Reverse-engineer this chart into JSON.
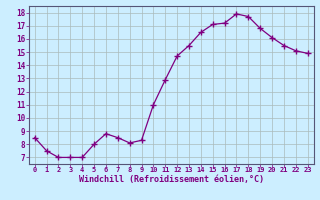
{
  "x": [
    0,
    1,
    2,
    3,
    4,
    5,
    6,
    7,
    8,
    9,
    10,
    11,
    12,
    13,
    14,
    15,
    16,
    17,
    18,
    19,
    20,
    21,
    22,
    23
  ],
  "y": [
    8.5,
    7.5,
    7.0,
    7.0,
    7.0,
    8.0,
    8.8,
    8.5,
    8.1,
    8.3,
    11.0,
    12.9,
    14.7,
    15.5,
    16.5,
    17.1,
    17.2,
    17.9,
    17.7,
    16.8,
    16.1,
    15.5,
    15.1,
    14.9
  ],
  "line_color": "#800080",
  "marker": "+",
  "marker_size": 4,
  "bg_color": "#cceeff",
  "grid_color": "#aabbbb",
  "xlabel": "Windchill (Refroidissement éolien,°C)",
  "ylabel_ticks": [
    7,
    8,
    9,
    10,
    11,
    12,
    13,
    14,
    15,
    16,
    17,
    18
  ],
  "ylim": [
    6.5,
    18.5
  ],
  "xlim": [
    -0.5,
    23.5
  ],
  "tick_color": "#800080",
  "spine_color": "#555577"
}
